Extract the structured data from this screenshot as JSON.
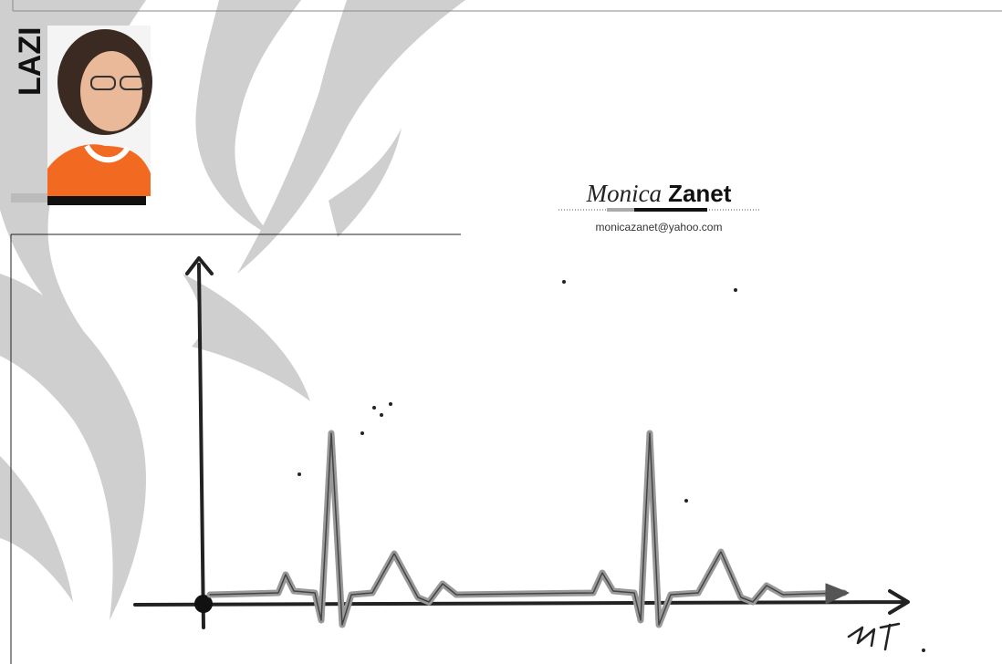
{
  "side_label": "LAZI",
  "author": {
    "first_name": "Monica",
    "last_name": "Zanet",
    "email": "monicazanet@yahoo.com"
  }
}
